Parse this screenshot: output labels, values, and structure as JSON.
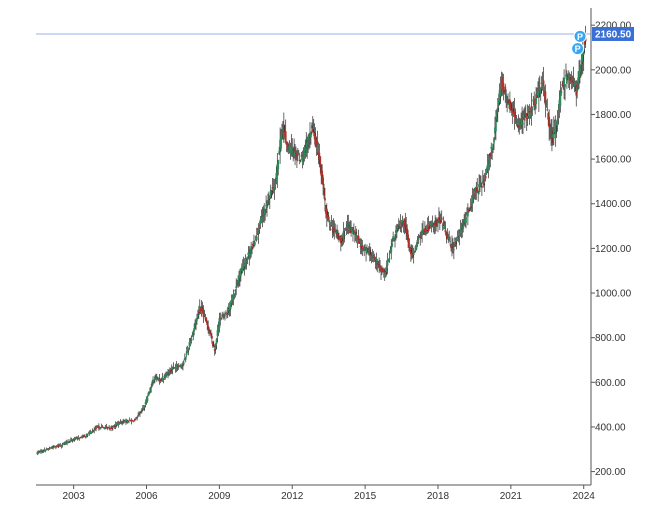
{
  "colors": {
    "up": "#2e8b57",
    "down": "#b5322a",
    "wick": "#2a2a2a",
    "axis": "#555555",
    "price_line": "#3a6fd8",
    "price_tag_bg": "#3a6fd8",
    "marker": "#39a7f0"
  },
  "chart_data": {
    "type": "candlestick",
    "grid": false,
    "y_axis_side": "right",
    "ylim": [
      140,
      2250
    ],
    "xlim": [
      2001.45,
      2024.3
    ],
    "current_price": 2160.5,
    "current_price_label": "2160.50",
    "marker_label": "P",
    "y_ticks": [
      {
        "value": 200,
        "label": "200.00"
      },
      {
        "value": 400,
        "label": "400.00"
      },
      {
        "value": 600,
        "label": "600.00"
      },
      {
        "value": 800,
        "label": "800.00"
      },
      {
        "value": 1000,
        "label": "1000.00"
      },
      {
        "value": 1200,
        "label": "1200.00"
      },
      {
        "value": 1400,
        "label": "1400.00"
      },
      {
        "value": 1600,
        "label": "1600.00"
      },
      {
        "value": 1800,
        "label": "1800.00"
      },
      {
        "value": 2000,
        "label": "2000.00"
      },
      {
        "value": 2200,
        "label": "2200.00"
      }
    ],
    "x_ticks": [
      {
        "value": 2003,
        "label": "2003"
      },
      {
        "value": 2006,
        "label": "2006"
      },
      {
        "value": 2009,
        "label": "2009"
      },
      {
        "value": 2012,
        "label": "2012"
      },
      {
        "value": 2015,
        "label": "2015"
      },
      {
        "value": 2018,
        "label": "2018"
      },
      {
        "value": 2021,
        "label": "2021"
      },
      {
        "value": 2024,
        "label": "2024"
      }
    ],
    "price_path": [
      [
        2001.5,
        285
      ],
      [
        2002.0,
        305
      ],
      [
        2002.5,
        320
      ],
      [
        2003.0,
        345
      ],
      [
        2003.5,
        360
      ],
      [
        2004.0,
        400
      ],
      [
        2004.5,
        395
      ],
      [
        2005.0,
        425
      ],
      [
        2005.5,
        430
      ],
      [
        2005.9,
        490
      ],
      [
        2006.3,
        620
      ],
      [
        2006.6,
        610
      ],
      [
        2007.0,
        660
      ],
      [
        2007.5,
        680
      ],
      [
        2007.9,
        820
      ],
      [
        2008.2,
        940
      ],
      [
        2008.6,
        830
      ],
      [
        2008.8,
        740
      ],
      [
        2009.0,
        880
      ],
      [
        2009.4,
        930
      ],
      [
        2009.9,
        1100
      ],
      [
        2010.4,
        1220
      ],
      [
        2010.9,
        1380
      ],
      [
        2011.3,
        1500
      ],
      [
        2011.6,
        1750
      ],
      [
        2011.8,
        1650
      ],
      [
        2012.0,
        1640
      ],
      [
        2012.4,
        1600
      ],
      [
        2012.8,
        1740
      ],
      [
        2013.1,
        1620
      ],
      [
        2013.4,
        1350
      ],
      [
        2013.7,
        1280
      ],
      [
        2014.0,
        1240
      ],
      [
        2014.3,
        1300
      ],
      [
        2014.6,
        1260
      ],
      [
        2014.9,
        1200
      ],
      [
        2015.3,
        1170
      ],
      [
        2015.8,
        1080
      ],
      [
        2016.2,
        1260
      ],
      [
        2016.6,
        1330
      ],
      [
        2016.9,
        1160
      ],
      [
        2017.3,
        1270
      ],
      [
        2017.7,
        1300
      ],
      [
        2018.1,
        1330
      ],
      [
        2018.6,
        1200
      ],
      [
        2019.0,
        1290
      ],
      [
        2019.5,
        1450
      ],
      [
        2019.9,
        1500
      ],
      [
        2020.3,
        1700
      ],
      [
        2020.6,
        1950
      ],
      [
        2020.9,
        1850
      ],
      [
        2021.3,
        1750
      ],
      [
        2021.7,
        1800
      ],
      [
        2022.1,
        1880
      ],
      [
        2022.3,
        1940
      ],
      [
        2022.7,
        1680
      ],
      [
        2022.9,
        1780
      ],
      [
        2023.1,
        1930
      ],
      [
        2023.4,
        1980
      ],
      [
        2023.7,
        1900
      ],
      [
        2023.9,
        2050
      ],
      [
        2024.1,
        2160
      ]
    ]
  }
}
